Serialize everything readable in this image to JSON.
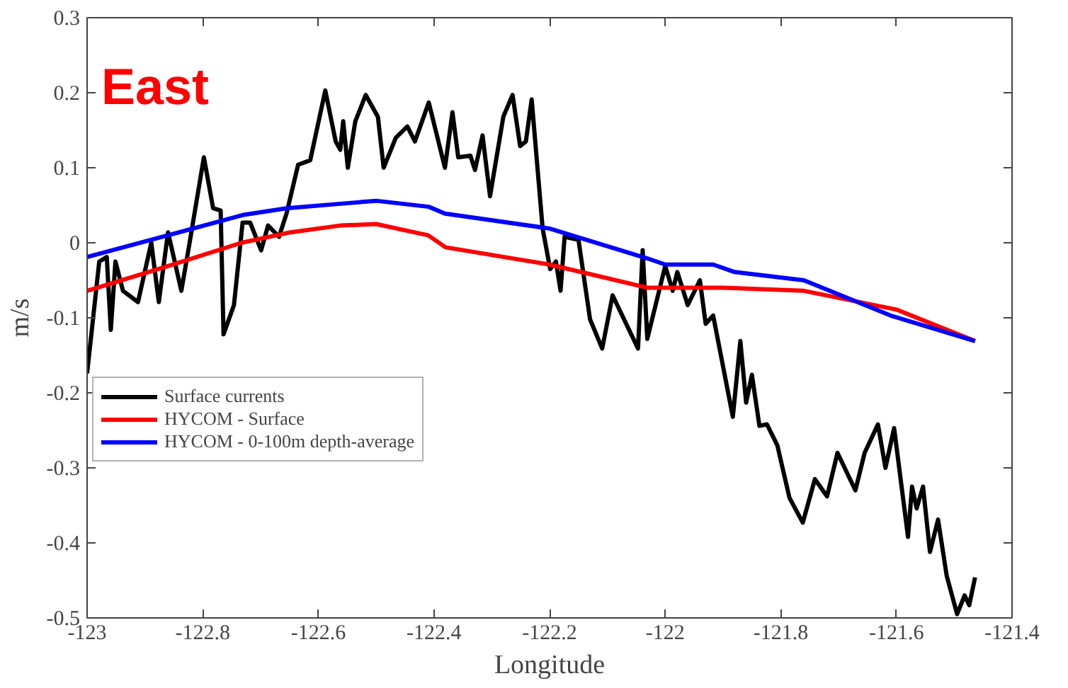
{
  "chart_data": {
    "type": "line",
    "xlabel": "Longitude",
    "ylabel": "m/s",
    "annotations": [
      "East"
    ],
    "xlim": [
      -123,
      -121.4
    ],
    "ylim": [
      -0.5,
      0.3
    ],
    "xticks": [
      -123,
      -122.8,
      -122.6,
      -122.4,
      -122.2,
      -122,
      -121.8,
      -121.6,
      -121.4
    ],
    "yticks": [
      -0.5,
      -0.4,
      -0.3,
      -0.2,
      -0.1,
      0,
      0.1,
      0.2,
      0.3
    ],
    "grid": false,
    "legend": "left",
    "marker": "none",
    "line_style": "solid",
    "series": [
      {
        "name": "Surface currents",
        "color": "#000000",
        "x": [
          -123.0,
          -122.979,
          -122.966,
          -122.959,
          -122.951,
          -122.938,
          -122.912,
          -122.889,
          -122.876,
          -122.86,
          -122.837,
          -122.824,
          -122.798,
          -122.782,
          -122.769,
          -122.764,
          -122.746,
          -122.731,
          -122.718,
          -122.699,
          -122.687,
          -122.668,
          -122.655,
          -122.635,
          -122.614,
          -122.588,
          -122.57,
          -122.562,
          -122.557,
          -122.549,
          -122.536,
          -122.518,
          -122.497,
          -122.487,
          -122.466,
          -122.446,
          -122.433,
          -122.409,
          -122.381,
          -122.368,
          -122.358,
          -122.337,
          -122.329,
          -122.316,
          -122.303,
          -122.28,
          -122.264,
          -122.251,
          -122.241,
          -122.231,
          -122.212,
          -122.199,
          -122.189,
          -122.181,
          -122.174,
          -122.15,
          -122.13,
          -122.109,
          -122.091,
          -122.047,
          -122.039,
          -122.031,
          -122.0,
          -121.987,
          -121.979,
          -121.961,
          -121.94,
          -121.93,
          -121.917,
          -121.883,
          -121.87,
          -121.86,
          -121.85,
          -121.837,
          -121.824,
          -121.806,
          -121.785,
          -121.762,
          -121.741,
          -121.72,
          -121.702,
          -121.671,
          -121.655,
          -121.632,
          -121.619,
          -121.604,
          -121.58,
          -121.573,
          -121.565,
          -121.554,
          -121.542,
          -121.528,
          -121.513,
          -121.495,
          -121.482,
          -121.474,
          -121.464
        ],
        "values": [
          -0.174,
          -0.025,
          -0.019,
          -0.116,
          -0.025,
          -0.064,
          -0.079,
          0,
          -0.079,
          0.014,
          -0.064,
          -0.006,
          0.114,
          0.046,
          0.043,
          -0.122,
          -0.083,
          0.027,
          0.027,
          -0.01,
          0.023,
          0.008,
          0.039,
          0.104,
          0.11,
          0.203,
          0.135,
          0.124,
          0.162,
          0.1,
          0.162,
          0.197,
          0.168,
          0.1,
          0.14,
          0.155,
          0.135,
          0.187,
          0.1,
          0.174,
          0.114,
          0.116,
          0.097,
          0.143,
          0.062,
          0.168,
          0.197,
          0.129,
          0.135,
          0.191,
          0.019,
          -0.035,
          -0.025,
          -0.064,
          0.008,
          0.004,
          -0.102,
          -0.141,
          -0.07,
          -0.141,
          -0.01,
          -0.128,
          -0.031,
          -0.064,
          -0.039,
          -0.083,
          -0.05,
          -0.108,
          -0.097,
          -0.232,
          -0.131,
          -0.213,
          -0.176,
          -0.244,
          -0.242,
          -0.27,
          -0.34,
          -0.373,
          -0.315,
          -0.338,
          -0.28,
          -0.33,
          -0.28,
          -0.242,
          -0.3,
          -0.247,
          -0.392,
          -0.325,
          -0.354,
          -0.325,
          -0.412,
          -0.369,
          -0.444,
          -0.495,
          -0.47,
          -0.483,
          -0.446
        ]
      },
      {
        "name": "HYCOM - Surface",
        "color": "#ff0000",
        "x": [
          -123.0,
          -122.86,
          -122.733,
          -122.648,
          -122.562,
          -122.5,
          -122.44,
          -122.41,
          -122.38,
          -122.2,
          -122.03,
          -121.9,
          -121.76,
          -121.6,
          -121.464
        ],
        "values": [
          -0.064,
          -0.031,
          0,
          0.014,
          0.023,
          0.025,
          0.015,
          0.01,
          -0.006,
          -0.029,
          -0.06,
          -0.06,
          -0.064,
          -0.089,
          -0.131
        ]
      },
      {
        "name": "HYCOM - 0-100m depth-average",
        "color": "#0000ff",
        "x": [
          -123.0,
          -122.86,
          -122.731,
          -122.655,
          -122.562,
          -122.5,
          -122.409,
          -122.381,
          -122.2,
          -122.03,
          -122.0,
          -121.917,
          -121.88,
          -121.76,
          -121.61,
          -121.464
        ],
        "values": [
          -0.019,
          0.01,
          0.037,
          0.046,
          0.052,
          0.056,
          0.048,
          0.039,
          0.019,
          -0.021,
          -0.029,
          -0.029,
          -0.039,
          -0.05,
          -0.097,
          -0.131
        ]
      }
    ]
  }
}
